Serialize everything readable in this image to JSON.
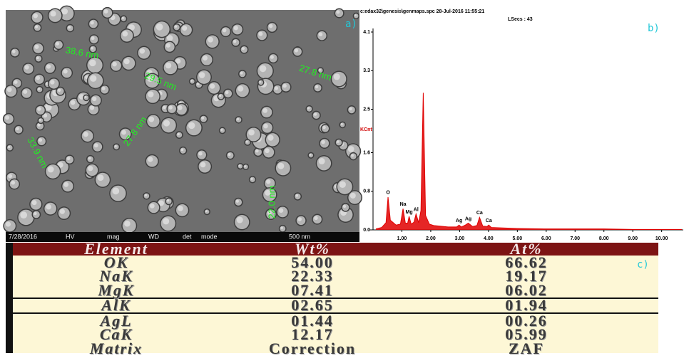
{
  "sem": {
    "panel_label": "a)",
    "measurements": [
      "38.6 nm",
      "29.5 nm",
      "27.8 nm",
      "27.8 nm",
      "33.9 nm",
      "22.0 nm"
    ],
    "footer": [
      "7/28/2016",
      "HV",
      "mag",
      "WD",
      "det",
      "mode",
      "500 nm"
    ]
  },
  "chart_data": {
    "type": "line",
    "title": "c:edax32\\genesis\\genmaps.spc  28-Jul-2016 11:55:21",
    "subtitle": "LSecs : 43",
    "panel_label": "b)",
    "y_label": "KCnt",
    "color": "#e00000",
    "x": [
      0.1,
      0.3,
      0.45,
      0.52,
      0.6,
      0.8,
      0.95,
      1.04,
      1.12,
      1.2,
      1.25,
      1.32,
      1.42,
      1.49,
      1.58,
      1.66,
      1.74,
      1.82,
      1.95,
      2.1,
      2.3,
      2.6,
      2.9,
      2.98,
      3.06,
      3.2,
      3.3,
      3.45,
      3.6,
      3.69,
      3.8,
      3.95,
      4.01,
      4.1,
      4.5,
      5,
      6,
      7,
      8,
      9,
      10,
      10.7
    ],
    "values": [
      0.02,
      0.05,
      0.15,
      0.68,
      0.2,
      0.1,
      0.12,
      0.44,
      0.14,
      0.14,
      0.28,
      0.12,
      0.16,
      0.33,
      0.15,
      0.4,
      2.84,
      0.3,
      0.12,
      0.09,
      0.08,
      0.06,
      0.06,
      0.1,
      0.06,
      0.1,
      0.14,
      0.07,
      0.09,
      0.26,
      0.08,
      0.07,
      0.1,
      0.05,
      0.04,
      0.03,
      0.02,
      0.02,
      0.02,
      0.01,
      0.01,
      0.01
    ],
    "peaks": [
      {
        "label": "O",
        "x": 0.52
      },
      {
        "label": "Na",
        "x": 1.04
      },
      {
        "label": "Mg",
        "x": 1.25
      },
      {
        "label": "Al",
        "x": 1.49
      },
      {
        "label": "Ag",
        "x": 2.98
      },
      {
        "label": "Ag",
        "x": 3.3
      },
      {
        "label": "Ca",
        "x": 3.69
      },
      {
        "label": "Ca",
        "x": 4.01
      }
    ],
    "xlim": [
      0,
      10.75
    ],
    "ylim": [
      0,
      4.1
    ],
    "xticks": [
      {
        "value": 1,
        "label": "1.00"
      },
      {
        "value": 2,
        "label": "2.00"
      },
      {
        "value": 3,
        "label": "3.00"
      },
      {
        "value": 4,
        "label": "4.00"
      },
      {
        "value": 5,
        "label": "5.00"
      },
      {
        "value": 6,
        "label": "6.00"
      },
      {
        "value": 7,
        "label": "7.00"
      },
      {
        "value": 8,
        "label": "8.00"
      },
      {
        "value": 9,
        "label": "9.00"
      },
      {
        "value": 10,
        "label": "10.00"
      }
    ],
    "yticks": [
      {
        "value": 0,
        "label": "0.0"
      },
      0.8,
      1.6,
      2.5,
      3.3,
      4.1
    ]
  },
  "table": {
    "panel_label": "c)",
    "header": [
      "Element",
      "Wt%",
      "At%"
    ],
    "rows": [
      [
        "OK",
        "54.00",
        "66.62"
      ],
      [
        "NaK",
        "22.33",
        "19.17"
      ],
      [
        "MgK",
        "07.41",
        "06.02"
      ],
      [
        "AlK",
        "02.65",
        "01.94"
      ],
      [
        "AgL",
        "01.44",
        "00.26"
      ],
      [
        "CaK",
        "12.17",
        "05.99"
      ],
      [
        "Matrix",
        "Correction",
        "ZAF"
      ]
    ]
  }
}
